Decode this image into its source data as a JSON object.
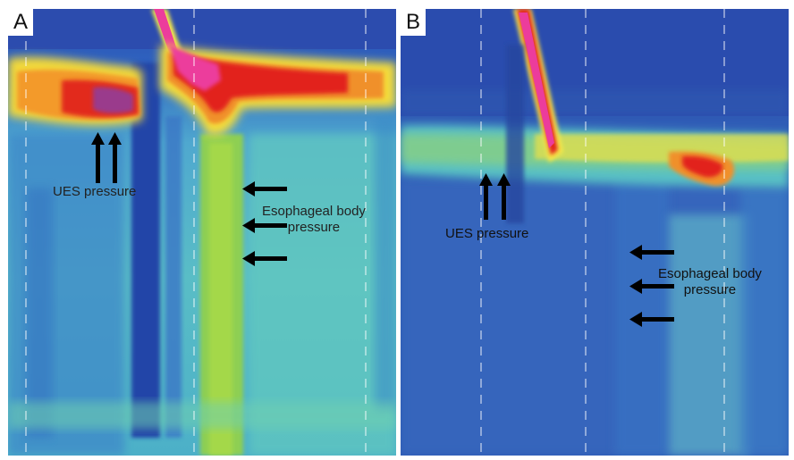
{
  "panels": [
    {
      "letter": "A",
      "labels": {
        "ues": "UES pressure",
        "esophageal_line1": "Esophageal body",
        "esophageal_line2": "pressure"
      }
    },
    {
      "letter": "B",
      "labels": {
        "ues": "UES pressure",
        "esophageal_line1": "Esophageal body",
        "esophageal_line2": "pressure"
      }
    }
  ],
  "colors": {
    "background": "#2f5fb8",
    "dark_blue": "#1f3f9a",
    "cyan": "#5cc7c2",
    "green": "#9ed64a",
    "yellow": "#f2e33c",
    "orange": "#f38a2a",
    "red": "#e2231f",
    "magenta": "#ec3c9c"
  }
}
